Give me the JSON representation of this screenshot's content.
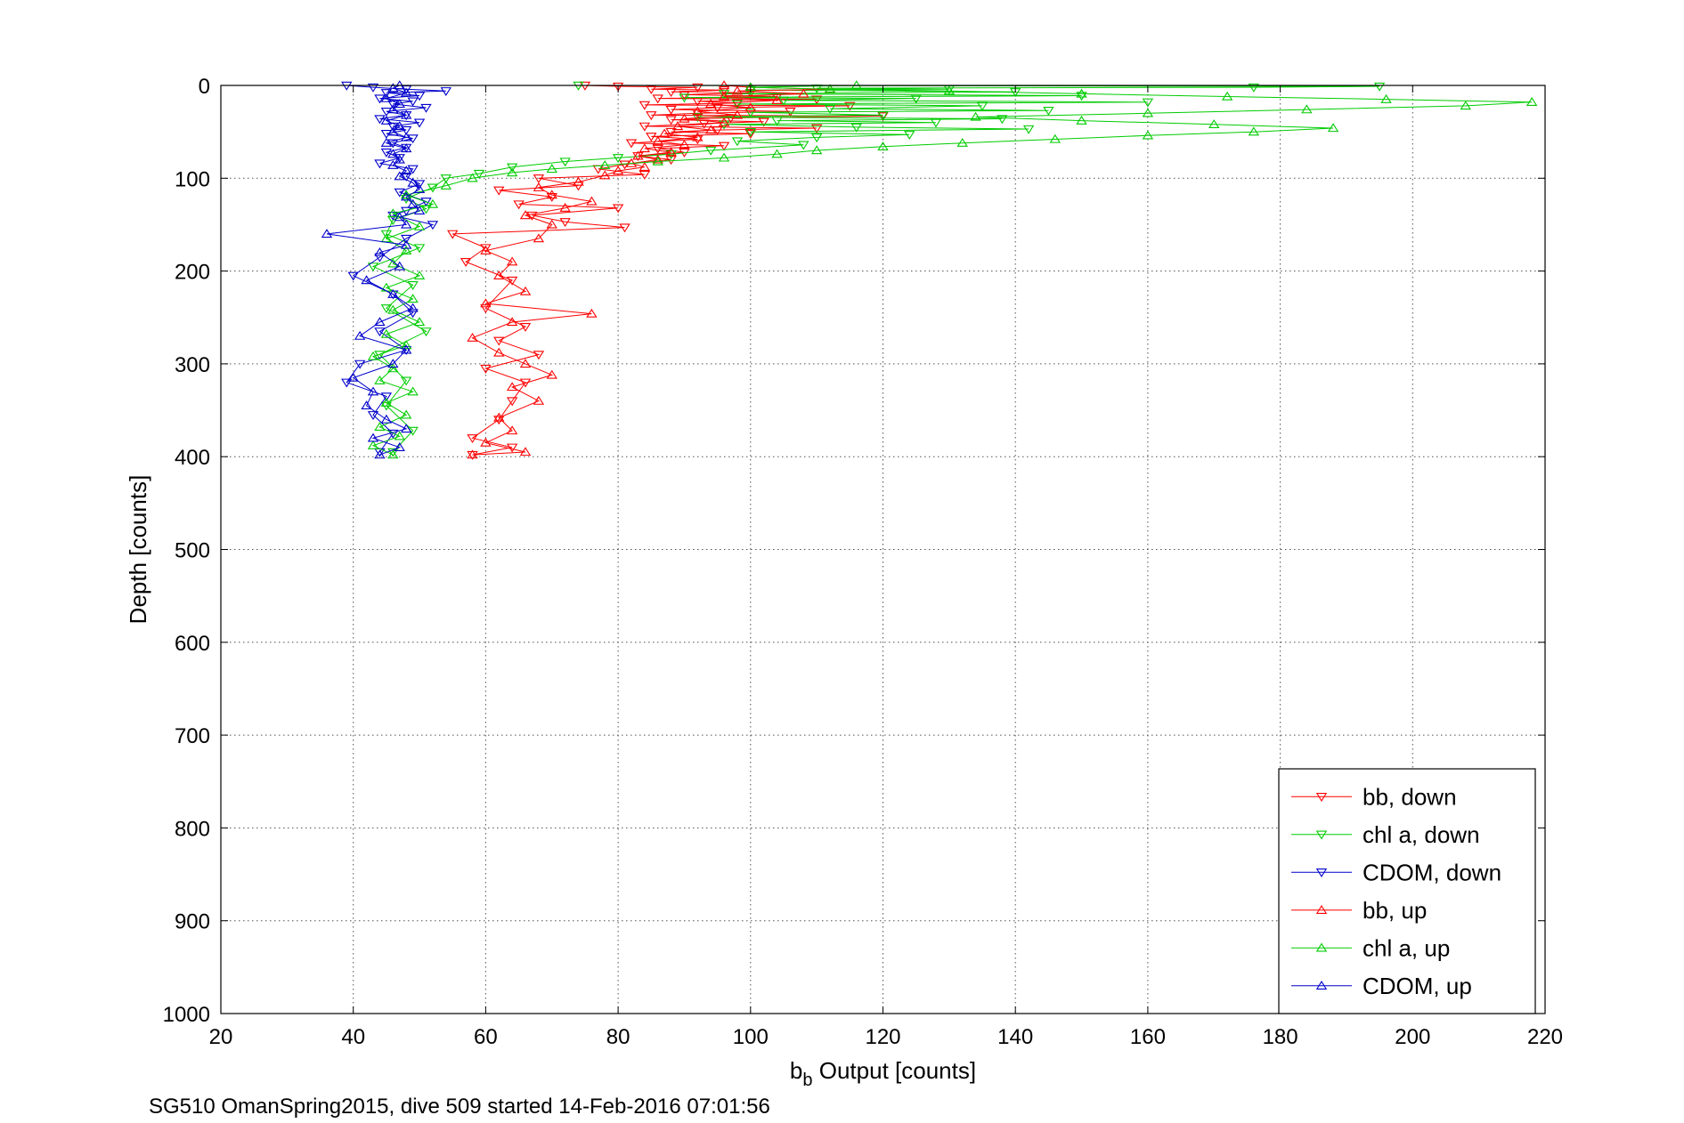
{
  "chart_data": {
    "type": "scatter",
    "xlabel": {
      "main": "b",
      "sub": "b",
      "rest": " Output [counts]"
    },
    "ylabel": "Depth [counts]",
    "footer": "SG510 OmanSpring2015, dive 509 started 14-Feb-2016 07:01:56",
    "xlim": [
      20,
      220
    ],
    "ylim": [
      0,
      1000
    ],
    "y_reversed": true,
    "grid": true,
    "legend_position": "bottom-right",
    "xticks": [
      20,
      40,
      60,
      80,
      100,
      120,
      140,
      160,
      180,
      200,
      220
    ],
    "yticks": [
      0,
      100,
      200,
      300,
      400,
      500,
      600,
      700,
      800,
      900,
      1000
    ],
    "series": [
      {
        "name": "bb, down",
        "color": "#ff0000",
        "marker": "triangle-down",
        "line": true,
        "points": [
          [
            75,
            0
          ],
          [
            80,
            1
          ],
          [
            92,
            2
          ],
          [
            85,
            4
          ],
          [
            96,
            5
          ],
          [
            88,
            7
          ],
          [
            100,
            8
          ],
          [
            90,
            10
          ],
          [
            104,
            12
          ],
          [
            86,
            14
          ],
          [
            110,
            15
          ],
          [
            92,
            17
          ],
          [
            98,
            19
          ],
          [
            84,
            21
          ],
          [
            115,
            22
          ],
          [
            95,
            24
          ],
          [
            88,
            26
          ],
          [
            106,
            28
          ],
          [
            92,
            30
          ],
          [
            85,
            32
          ],
          [
            120,
            33
          ],
          [
            97,
            35
          ],
          [
            88,
            37
          ],
          [
            102,
            39
          ],
          [
            93,
            41
          ],
          [
            84,
            44
          ],
          [
            110,
            46
          ],
          [
            95,
            48
          ],
          [
            88,
            50
          ],
          [
            100,
            52
          ],
          [
            85,
            55
          ],
          [
            92,
            58
          ],
          [
            82,
            62
          ],
          [
            96,
            65
          ],
          [
            86,
            68
          ],
          [
            90,
            72
          ],
          [
            83,
            76
          ],
          [
            88,
            80
          ],
          [
            81,
            85
          ],
          [
            77,
            90
          ],
          [
            84,
            96
          ],
          [
            68,
            100
          ],
          [
            74,
            108
          ],
          [
            62,
            113
          ],
          [
            70,
            120
          ],
          [
            65,
            128
          ],
          [
            80,
            132
          ],
          [
            67,
            140
          ],
          [
            72,
            147
          ],
          [
            81,
            153
          ],
          [
            55,
            160
          ],
          [
            60,
            175
          ],
          [
            57,
            190
          ],
          [
            64,
            210
          ],
          [
            60,
            240
          ],
          [
            66,
            260
          ],
          [
            62,
            275
          ],
          [
            68,
            290
          ],
          [
            60,
            305
          ],
          [
            66,
            320
          ],
          [
            64,
            340
          ],
          [
            62,
            360
          ],
          [
            58,
            380
          ],
          [
            64,
            390
          ],
          [
            58,
            398
          ]
        ]
      },
      {
        "name": "chl a, down",
        "color": "#00cc00",
        "marker": "triangle-down",
        "line": true,
        "points": [
          [
            74,
            0
          ],
          [
            195,
            1
          ],
          [
            176,
            2
          ],
          [
            110,
            3
          ],
          [
            130,
            4
          ],
          [
            100,
            5
          ],
          [
            140,
            7
          ],
          [
            96,
            9
          ],
          [
            150,
            11
          ],
          [
            90,
            13
          ],
          [
            125,
            14
          ],
          [
            105,
            16
          ],
          [
            160,
            18
          ],
          [
            98,
            20
          ],
          [
            135,
            22
          ],
          [
            112,
            25
          ],
          [
            145,
            27
          ],
          [
            100,
            29
          ],
          [
            120,
            32
          ],
          [
            92,
            34
          ],
          [
            138,
            36
          ],
          [
            104,
            38
          ],
          [
            128,
            40
          ],
          [
            96,
            42
          ],
          [
            116,
            45
          ],
          [
            142,
            47
          ],
          [
            100,
            50
          ],
          [
            124,
            53
          ],
          [
            110,
            56
          ],
          [
            98,
            60
          ],
          [
            108,
            64
          ],
          [
            94,
            70
          ],
          [
            88,
            74
          ],
          [
            80,
            78
          ],
          [
            72,
            82
          ],
          [
            64,
            88
          ],
          [
            59,
            95
          ],
          [
            54,
            100
          ],
          [
            52,
            110
          ],
          [
            48,
            122
          ],
          [
            51,
            133
          ],
          [
            46,
            145
          ],
          [
            45,
            160
          ],
          [
            50,
            175
          ],
          [
            43,
            195
          ],
          [
            49,
            215
          ],
          [
            45,
            240
          ],
          [
            51,
            265
          ],
          [
            44,
            290
          ],
          [
            48,
            318
          ],
          [
            45,
            345
          ],
          [
            49,
            372
          ],
          [
            46,
            395
          ]
        ]
      },
      {
        "name": "CDOM, down",
        "color": "#0000cc",
        "marker": "triangle-down",
        "line": true,
        "points": [
          [
            39,
            0
          ],
          [
            43,
            2
          ],
          [
            48,
            4
          ],
          [
            54,
            6
          ],
          [
            45,
            8
          ],
          [
            50,
            11
          ],
          [
            44,
            14
          ],
          [
            49,
            17
          ],
          [
            46,
            20
          ],
          [
            51,
            24
          ],
          [
            45,
            28
          ],
          [
            48,
            32
          ],
          [
            44,
            36
          ],
          [
            50,
            40
          ],
          [
            46,
            44
          ],
          [
            48,
            48
          ],
          [
            45,
            52
          ],
          [
            49,
            57
          ],
          [
            46,
            62
          ],
          [
            48,
            67
          ],
          [
            45,
            72
          ],
          [
            47,
            78
          ],
          [
            44,
            84
          ],
          [
            49,
            90
          ],
          [
            48,
            98
          ],
          [
            50,
            106
          ],
          [
            47,
            115
          ],
          [
            51,
            125
          ],
          [
            48,
            135
          ],
          [
            46,
            140
          ],
          [
            52,
            150
          ],
          [
            48,
            165
          ],
          [
            44,
            185
          ],
          [
            40,
            205
          ],
          [
            46,
            225
          ],
          [
            49,
            245
          ],
          [
            44,
            265
          ],
          [
            48,
            285
          ],
          [
            41,
            300
          ],
          [
            39,
            320
          ],
          [
            45,
            335
          ],
          [
            43,
            355
          ],
          [
            46,
            375
          ],
          [
            44,
            395
          ]
        ]
      },
      {
        "name": "bb, up",
        "color": "#ff0000",
        "marker": "triangle-up",
        "line": true,
        "points": [
          [
            58,
            398
          ],
          [
            66,
            395
          ],
          [
            60,
            385
          ],
          [
            64,
            372
          ],
          [
            62,
            358
          ],
          [
            68,
            340
          ],
          [
            64,
            325
          ],
          [
            70,
            312
          ],
          [
            66,
            300
          ],
          [
            62,
            288
          ],
          [
            58,
            272
          ],
          [
            64,
            255
          ],
          [
            76,
            246
          ],
          [
            60,
            235
          ],
          [
            66,
            222
          ],
          [
            62,
            205
          ],
          [
            64,
            190
          ],
          [
            60,
            178
          ],
          [
            68,
            165
          ],
          [
            70,
            150
          ],
          [
            66,
            140
          ],
          [
            72,
            132
          ],
          [
            76,
            125
          ],
          [
            70,
            118
          ],
          [
            68,
            110
          ],
          [
            74,
            104
          ],
          [
            78,
            97
          ],
          [
            80,
            92
          ],
          [
            84,
            88
          ],
          [
            82,
            84
          ],
          [
            86,
            80
          ],
          [
            83,
            76
          ],
          [
            88,
            72
          ],
          [
            84,
            68
          ],
          [
            90,
            64
          ],
          [
            86,
            60
          ],
          [
            92,
            56
          ],
          [
            87,
            52
          ],
          [
            94,
            48
          ],
          [
            89,
            44
          ],
          [
            96,
            40
          ],
          [
            90,
            36
          ],
          [
            98,
            32
          ],
          [
            92,
            28
          ],
          [
            100,
            24
          ],
          [
            94,
            20
          ],
          [
            104,
            16
          ],
          [
            96,
            12
          ],
          [
            108,
            9
          ],
          [
            98,
            6
          ],
          [
            112,
            4
          ],
          [
            100,
            2
          ],
          [
            96,
            0
          ]
        ]
      },
      {
        "name": "chl a, up",
        "color": "#00cc00",
        "marker": "triangle-up",
        "line": true,
        "points": [
          [
            46,
            398
          ],
          [
            43,
            388
          ],
          [
            47,
            378
          ],
          [
            44,
            368
          ],
          [
            48,
            355
          ],
          [
            45,
            342
          ],
          [
            49,
            330
          ],
          [
            44,
            318
          ],
          [
            46,
            305
          ],
          [
            43,
            292
          ],
          [
            48,
            280
          ],
          [
            45,
            268
          ],
          [
            50,
            255
          ],
          [
            46,
            242
          ],
          [
            49,
            230
          ],
          [
            45,
            218
          ],
          [
            50,
            205
          ],
          [
            46,
            192
          ],
          [
            48,
            178
          ],
          [
            45,
            165
          ],
          [
            50,
            152
          ],
          [
            46,
            138
          ],
          [
            52,
            128
          ],
          [
            48,
            118
          ],
          [
            54,
            108
          ],
          [
            58,
            100
          ],
          [
            64,
            94
          ],
          [
            70,
            90
          ],
          [
            78,
            86
          ],
          [
            86,
            82
          ],
          [
            96,
            78
          ],
          [
            104,
            74
          ],
          [
            110,
            70
          ],
          [
            120,
            66
          ],
          [
            132,
            62
          ],
          [
            146,
            58
          ],
          [
            160,
            54
          ],
          [
            176,
            50
          ],
          [
            188,
            46
          ],
          [
            170,
            42
          ],
          [
            150,
            38
          ],
          [
            134,
            34
          ],
          [
            160,
            30
          ],
          [
            184,
            26
          ],
          [
            208,
            22
          ],
          [
            218,
            18
          ],
          [
            196,
            15
          ],
          [
            172,
            12
          ],
          [
            150,
            9
          ],
          [
            130,
            6
          ],
          [
            112,
            4
          ],
          [
            100,
            2
          ],
          [
            116,
            0
          ]
        ]
      },
      {
        "name": "CDOM, up",
        "color": "#0000cc",
        "marker": "triangle-up",
        "line": true,
        "points": [
          [
            44,
            398
          ],
          [
            47,
            390
          ],
          [
            43,
            380
          ],
          [
            48,
            370
          ],
          [
            45,
            360
          ],
          [
            42,
            345
          ],
          [
            43,
            330
          ],
          [
            40,
            315
          ],
          [
            46,
            300
          ],
          [
            48,
            285
          ],
          [
            41,
            270
          ],
          [
            44,
            255
          ],
          [
            49,
            240
          ],
          [
            46,
            225
          ],
          [
            42,
            210
          ],
          [
            47,
            195
          ],
          [
            44,
            180
          ],
          [
            48,
            172
          ],
          [
            36,
            160
          ],
          [
            48,
            150
          ],
          [
            47,
            142
          ],
          [
            50,
            135
          ],
          [
            49,
            128
          ],
          [
            48,
            120
          ],
          [
            50,
            112
          ],
          [
            49,
            105
          ],
          [
            47,
            98
          ],
          [
            48,
            92
          ],
          [
            46,
            86
          ],
          [
            47,
            80
          ],
          [
            46,
            74
          ],
          [
            48,
            68
          ],
          [
            45,
            62
          ],
          [
            48,
            56
          ],
          [
            46,
            50
          ],
          [
            47,
            44
          ],
          [
            45,
            38
          ],
          [
            48,
            32
          ],
          [
            46,
            26
          ],
          [
            47,
            20
          ],
          [
            45,
            14
          ],
          [
            48,
            8
          ],
          [
            46,
            3
          ],
          [
            47,
            0
          ]
        ]
      }
    ]
  }
}
